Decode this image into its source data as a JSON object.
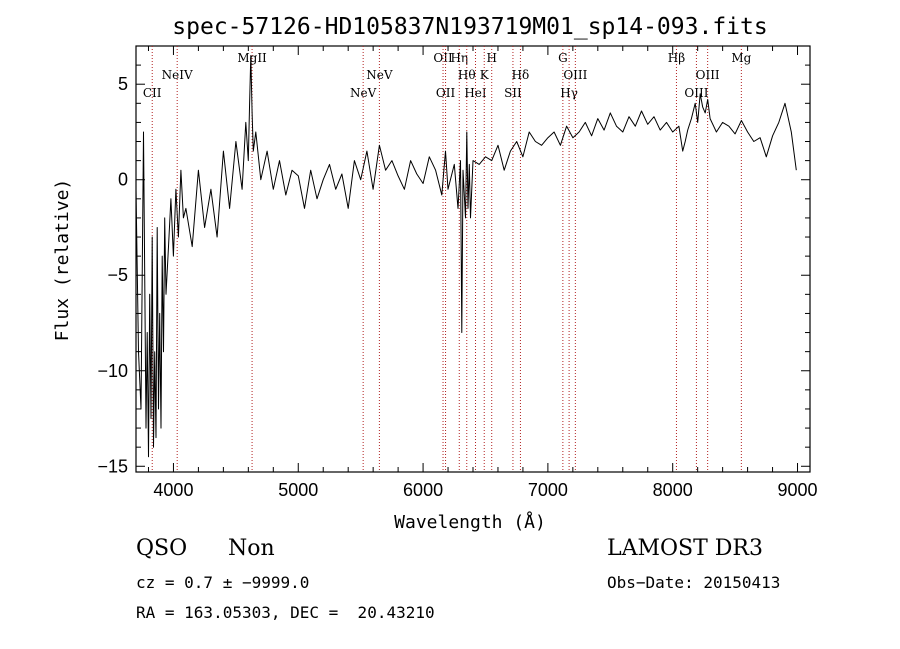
{
  "chart_data": {
    "type": "line",
    "title": "spec-57126-HD105837N193719M01_sp14-093.fits",
    "xlabel": "Wavelength (Å)",
    "ylabel": "Flux (relative)",
    "xlim": [
      3700,
      9100
    ],
    "ylim": [
      -15.3,
      7.0
    ],
    "x_ticks": [
      4000,
      5000,
      6000,
      7000,
      8000,
      9000
    ],
    "y_ticks": [
      -15,
      -10,
      -5,
      0,
      5
    ],
    "grid": false,
    "series": [
      {
        "color": "#000000",
        "x": [
          3700,
          3720,
          3740,
          3760,
          3780,
          3790,
          3800,
          3810,
          3820,
          3830,
          3840,
          3850,
          3860,
          3870,
          3880,
          3890,
          3900,
          3910,
          3920,
          3930,
          3940,
          3960,
          3980,
          4000,
          4020,
          4040,
          4060,
          4080,
          4100,
          4150,
          4200,
          4250,
          4300,
          4350,
          4400,
          4450,
          4500,
          4550,
          4580,
          4600,
          4610,
          4620,
          4630,
          4640,
          4660,
          4700,
          4750,
          4800,
          4850,
          4900,
          4950,
          5000,
          5050,
          5100,
          5150,
          5200,
          5250,
          5300,
          5350,
          5400,
          5450,
          5500,
          5550,
          5600,
          5650,
          5700,
          5750,
          5800,
          5850,
          5900,
          5950,
          6000,
          6050,
          6100,
          6150,
          6180,
          6200,
          6250,
          6280,
          6300,
          6310,
          6320,
          6340,
          6350,
          6360,
          6370,
          6380,
          6400,
          6450,
          6500,
          6550,
          6600,
          6650,
          6700,
          6750,
          6800,
          6850,
          6900,
          6950,
          7000,
          7050,
          7100,
          7150,
          7200,
          7250,
          7300,
          7350,
          7400,
          7450,
          7500,
          7550,
          7600,
          7650,
          7700,
          7750,
          7800,
          7850,
          7900,
          7950,
          8000,
          8050,
          8080,
          8100,
          8120,
          8150,
          8180,
          8200,
          8220,
          8240,
          8260,
          8280,
          8300,
          8350,
          8400,
          8450,
          8500,
          8550,
          8600,
          8650,
          8700,
          8750,
          8800,
          8850,
          8900,
          8950,
          8990
        ],
        "y": [
          -0.5,
          -9.0,
          -12.0,
          2.5,
          -13.0,
          -8.0,
          -14.5,
          -6.0,
          -12.5,
          -3.0,
          -14.0,
          -9.0,
          -13.5,
          -2.5,
          -12.0,
          -7.0,
          -13.0,
          -4.0,
          -9.0,
          -2.0,
          -6.0,
          -3.5,
          -1.0,
          -4.0,
          -0.5,
          -3.0,
          0.5,
          -2.0,
          -1.5,
          -3.5,
          0.5,
          -2.5,
          -0.5,
          -3.0,
          1.5,
          -1.5,
          2.0,
          -0.5,
          3.0,
          1.0,
          4.0,
          6.5,
          3.5,
          1.5,
          2.5,
          0.0,
          1.5,
          -0.5,
          1.0,
          -0.8,
          0.5,
          0.2,
          -1.5,
          0.5,
          -1.0,
          0.0,
          0.8,
          -0.5,
          0.3,
          -1.5,
          1.0,
          0.0,
          1.5,
          -0.5,
          1.8,
          0.5,
          1.0,
          0.2,
          -0.5,
          1.0,
          0.3,
          -0.2,
          1.2,
          0.5,
          -0.8,
          1.5,
          -0.5,
          0.8,
          -1.5,
          1.0,
          -8.0,
          0.5,
          -2.0,
          2.5,
          -1.5,
          0.8,
          -2.0,
          1.0,
          0.8,
          1.2,
          1.0,
          1.8,
          0.5,
          1.5,
          2.0,
          1.2,
          2.5,
          2.0,
          1.8,
          2.2,
          2.5,
          1.8,
          2.8,
          2.2,
          2.5,
          3.0,
          2.3,
          3.2,
          2.6,
          3.5,
          2.8,
          2.5,
          3.3,
          2.8,
          3.6,
          2.9,
          3.3,
          2.6,
          3.0,
          2.5,
          2.8,
          1.5,
          2.0,
          2.6,
          3.2,
          4.0,
          3.0,
          4.5,
          3.8,
          3.5,
          4.2,
          3.2,
          2.5,
          3.0,
          2.8,
          2.4,
          3.1,
          2.5,
          2.0,
          2.2,
          1.2,
          2.3,
          3.0,
          4.0,
          2.5,
          0.5
        ]
      }
    ],
    "lines": [
      {
        "x": 3830,
        "label": "CII",
        "row": 2
      },
      {
        "x": 4030,
        "label": "NeIV",
        "row": 1
      },
      {
        "x": 4630,
        "label": "MgII",
        "row": 0
      },
      {
        "x": 5520,
        "label": "NeV",
        "row": 2
      },
      {
        "x": 5650,
        "label": "NeV",
        "row": 1
      },
      {
        "x": 6160,
        "label": "OII",
        "row": 0
      },
      {
        "x": 6180,
        "label": "OII",
        "row": 2
      },
      {
        "x": 6290,
        "label": "Hη",
        "row": 0
      },
      {
        "x": 6350,
        "label": "Hθ",
        "row": 1
      },
      {
        "x": 6420,
        "label": "HeI",
        "row": 2
      },
      {
        "x": 6490,
        "label": "K",
        "row": 1
      },
      {
        "x": 6550,
        "label": "H",
        "row": 0
      },
      {
        "x": 6720,
        "label": "SII",
        "row": 2
      },
      {
        "x": 6780,
        "label": "Hδ",
        "row": 1
      },
      {
        "x": 7120,
        "label": "G",
        "row": 0
      },
      {
        "x": 7170,
        "label": "Hγ",
        "row": 2
      },
      {
        "x": 7220,
        "label": "OIII",
        "row": 1
      },
      {
        "x": 8030,
        "label": "Hβ",
        "row": 0
      },
      {
        "x": 8190,
        "label": "OIII",
        "row": 2
      },
      {
        "x": 8280,
        "label": "OIII",
        "row": 1
      },
      {
        "x": 8550,
        "label": "Mg",
        "row": 0
      }
    ]
  },
  "info": {
    "class": "QSO",
    "subclass": "Non",
    "survey": "LAMOST DR3",
    "cz": "cz = 0.7 ± −9999.0",
    "obs_date": "Obs−Date: 20150413",
    "coords": "RA = 163.05303, DEC =  20.43210"
  }
}
